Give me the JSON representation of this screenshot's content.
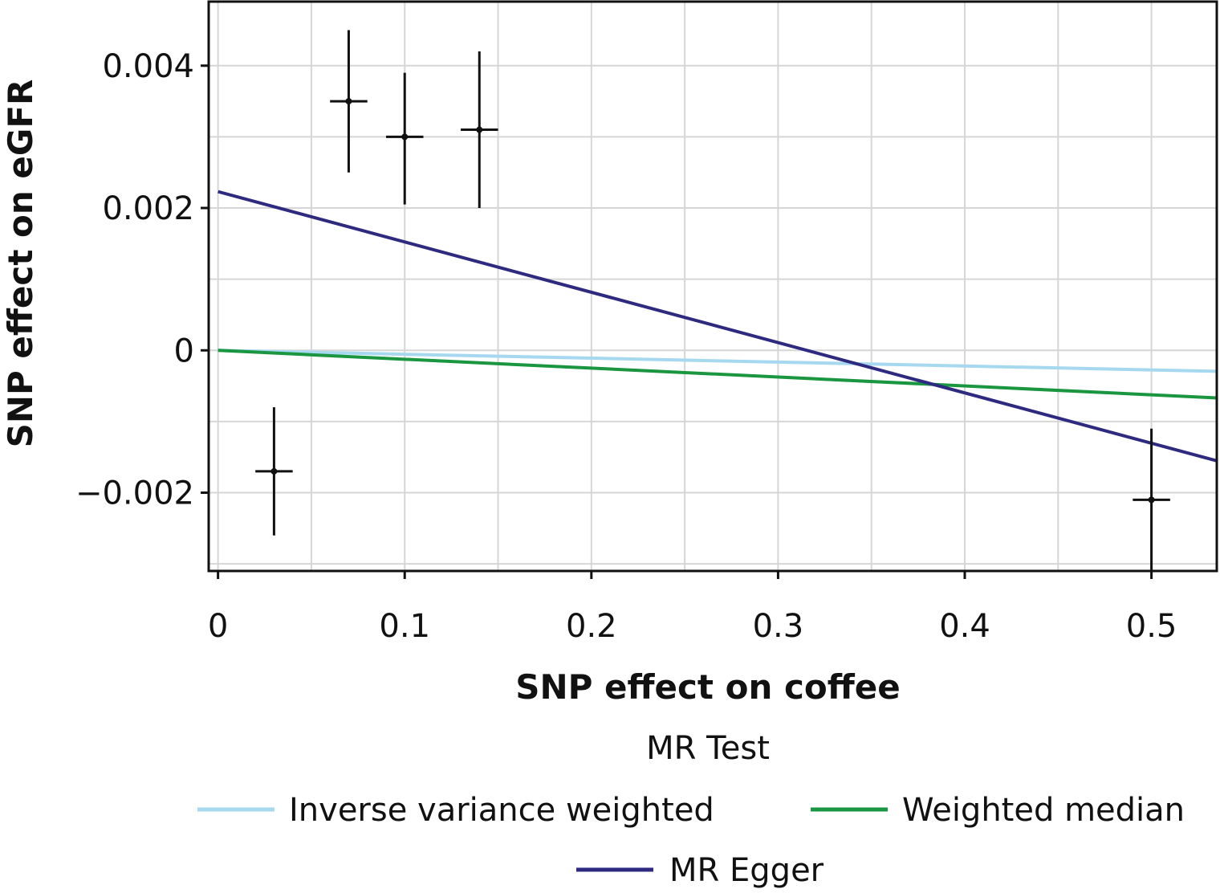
{
  "chart_data": {
    "type": "scatter",
    "xlabel": "SNP effect on coffee",
    "ylabel": "SNP effect on eGFR",
    "xlim": [
      -0.005,
      0.535
    ],
    "ylim": [
      -0.0031,
      0.0049
    ],
    "x_ticks": [
      0,
      0.1,
      0.2,
      0.3,
      0.4,
      0.5
    ],
    "x_tick_labels": [
      "0",
      "0.1",
      "0.2",
      "0.3",
      "0.4",
      "0.5"
    ],
    "y_ticks": [
      -0.002,
      0,
      0.002,
      0.004
    ],
    "y_tick_labels": [
      "−0.002",
      "0",
      "0.002",
      "0.004"
    ],
    "grid": true,
    "points": [
      {
        "x": 0.03,
        "y": -0.0017,
        "x_lo": 0.02,
        "x_hi": 0.04,
        "y_lo": -0.0026,
        "y_hi": -0.0008
      },
      {
        "x": 0.07,
        "y": 0.0035,
        "x_lo": 0.06,
        "x_hi": 0.08,
        "y_lo": 0.0025,
        "y_hi": 0.0045
      },
      {
        "x": 0.1,
        "y": 0.003,
        "x_lo": 0.09,
        "x_hi": 0.11,
        "y_lo": 0.00205,
        "y_hi": 0.0039
      },
      {
        "x": 0.14,
        "y": 0.0031,
        "x_lo": 0.13,
        "x_hi": 0.15,
        "y_lo": 0.002,
        "y_hi": 0.0042
      },
      {
        "x": 0.5,
        "y": -0.0021,
        "x_lo": 0.49,
        "x_hi": 0.51,
        "y_lo": -0.0031,
        "y_hi": -0.0011
      }
    ],
    "series": [
      {
        "name": "Inverse variance weighted",
        "intercept": 0,
        "slope": -0.00055,
        "color": "#a6d8f0"
      },
      {
        "name": "Weighted median",
        "intercept": 0,
        "slope": -0.00125,
        "color": "#1a9641"
      },
      {
        "name": "MR Egger",
        "intercept": 0.00223,
        "slope": -0.00707,
        "color": "#2e2a80"
      }
    ],
    "legend": {
      "title": "MR Test",
      "placement": "bottom"
    }
  }
}
